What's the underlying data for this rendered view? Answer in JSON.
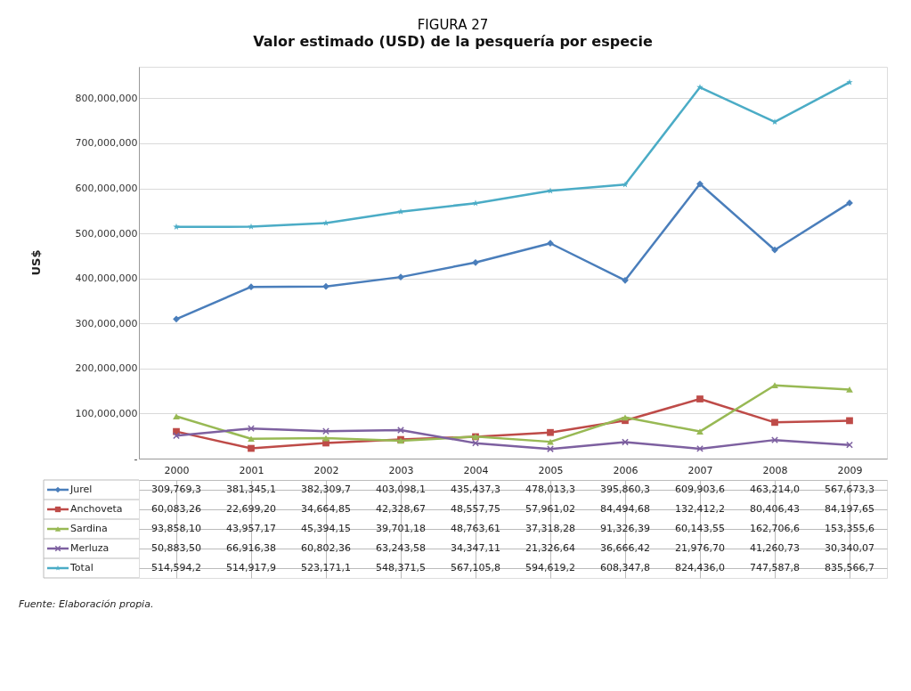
{
  "chart_data": {
    "type": "line",
    "title": "FIGURA 27",
    "subtitle": "Valor estimado (USD) de la pesquería por especie",
    "ylabel": "US$",
    "categories": [
      "2000",
      "2001",
      "2002",
      "2003",
      "2004",
      "2005",
      "2006",
      "2007",
      "2008",
      "2009"
    ],
    "ylim": [
      0,
      870000000
    ],
    "yticks": [
      {
        "value": 0,
        "label": "-"
      },
      {
        "value": 100000000,
        "label": "100,000,000"
      },
      {
        "value": 200000000,
        "label": "200,000,000"
      },
      {
        "value": 300000000,
        "label": "300,000,000"
      },
      {
        "value": 400000000,
        "label": "400,000,000"
      },
      {
        "value": 500000000,
        "label": "500,000,000"
      },
      {
        "value": 600000000,
        "label": "600,000,000"
      },
      {
        "value": 700000000,
        "label": "700,000,000"
      },
      {
        "value": 800000000,
        "label": "800,000,000"
      }
    ],
    "grid": "y",
    "legend": "bottom",
    "line_style": "solid",
    "series": [
      {
        "name": "Jurel",
        "color": "#4a7ebb",
        "marker": "diamond",
        "values": [
          309769300,
          381345100,
          382309700,
          403098100,
          435437300,
          478013300,
          395860300,
          609903600,
          463214000,
          567673300
        ],
        "value_labels": [
          "309,769,3",
          "381,345,1",
          "382,309,7",
          "403,098,1",
          "435,437,3",
          "478,013,3",
          "395,860,3",
          "609,903,6",
          "463,214,0",
          "567,673,3"
        ]
      },
      {
        "name": "Anchoveta",
        "color": "#be4b48",
        "marker": "square",
        "values": [
          60083260,
          22699200,
          34664850,
          42328670,
          48557750,
          57961020,
          84494680,
          132412200,
          80406430,
          84197650
        ],
        "value_labels": [
          "60,083,26",
          "22,699,20",
          "34,664,85",
          "42,328,67",
          "48,557,75",
          "57,961,02",
          "84,494,68",
          "132,412,2",
          "80,406,43",
          "84,197,65"
        ]
      },
      {
        "name": "Sardina",
        "color": "#98b954",
        "marker": "triangle",
        "values": [
          93858100,
          43957170,
          45394150,
          39701180,
          48763610,
          37318280,
          91326390,
          60143550,
          162706600,
          153355600
        ],
        "value_labels": [
          "93,858,10",
          "43,957,17",
          "45,394,15",
          "39,701,18",
          "48,763,61",
          "37,318,28",
          "91,326,39",
          "60,143,55",
          "162,706,6",
          "153,355,6"
        ]
      },
      {
        "name": "Merluza",
        "color": "#7d60a0",
        "marker": "cross",
        "values": [
          50883500,
          66916380,
          60802360,
          63243580,
          34347110,
          21326640,
          36666420,
          21976700,
          41260730,
          30340070
        ],
        "value_labels": [
          "50,883,50",
          "66,916,38",
          "60,802,36",
          "63,243,58",
          "34,347,11",
          "21,326,64",
          "36,666,42",
          "21,976,70",
          "41,260,73",
          "30,340,07"
        ]
      },
      {
        "name": "Total",
        "color": "#4bacc6",
        "marker": "star",
        "values": [
          514594200,
          514917900,
          523171100,
          548371500,
          567105800,
          594619200,
          608347800,
          824436000,
          747587800,
          835566700
        ],
        "value_labels": [
          "514,594,2",
          "514,917,9",
          "523,171,1",
          "548,371,5",
          "567,105,8",
          "594,619,2",
          "608,347,8",
          "824,436,0",
          "747,587,8",
          "835,566,7"
        ]
      }
    ],
    "annotations": [
      "Fuente: Elaboración propia."
    ]
  }
}
